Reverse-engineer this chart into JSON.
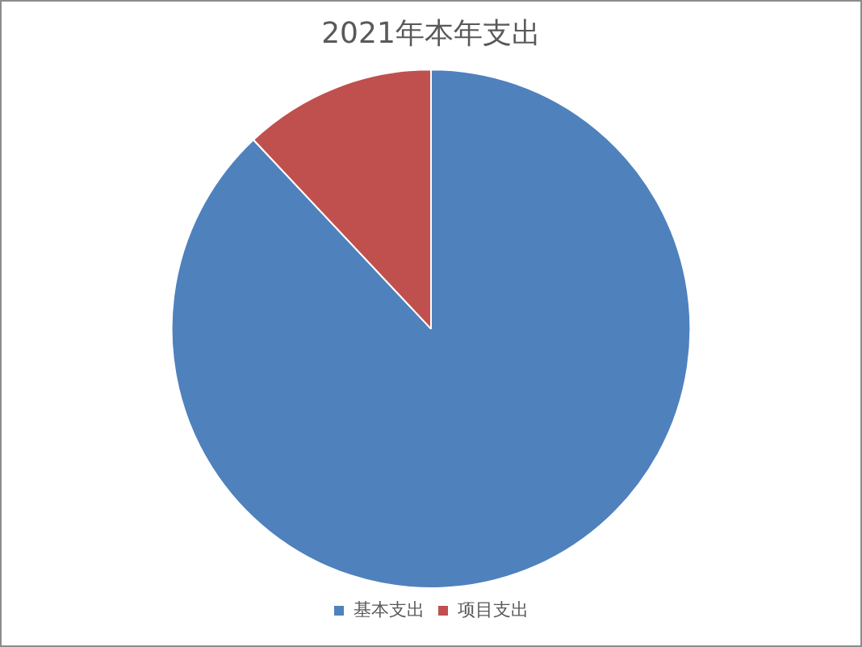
{
  "chart_data": {
    "type": "pie",
    "title": "2021年本年支出",
    "categories": [
      "基本支出",
      "项目支出"
    ],
    "values": [
      88,
      12
    ],
    "colors": [
      "#4f81bd",
      "#c0504d"
    ],
    "legend": "bottom"
  }
}
